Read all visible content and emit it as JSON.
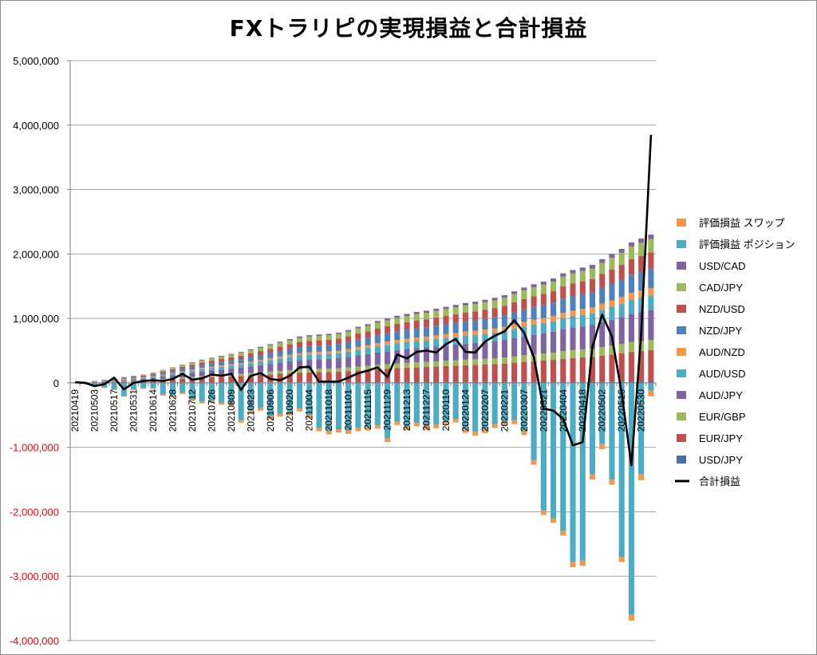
{
  "chart_data": {
    "type": "bar",
    "stacked": true,
    "title": "FXトラリピの実現損益と合計損益",
    "ylim": [
      -4000000,
      5000000
    ],
    "yticks": [
      5000000,
      4000000,
      3000000,
      2000000,
      1000000,
      0,
      -1000000,
      -2000000,
      -3000000,
      -4000000
    ],
    "ytick_labels": [
      "5,000,000",
      "4,000,000",
      "3,000,000",
      "2,000,000",
      "1,000,000",
      "0",
      "-1,000,000",
      "-2,000,000",
      "-3,000,000",
      "-4,000,000"
    ],
    "negative_tick_color": "#ff0000",
    "grid": true,
    "legend_position": "right",
    "categories": [
      "2021/04/19",
      "2021/04/26",
      "2021/05/03",
      "2021/05/10",
      "2021/05/17",
      "2021/05/24",
      "2021/05/31",
      "2021/06/07",
      "2021/06/14",
      "2021/06/21",
      "2021/06/28",
      "2021/07/05",
      "2021/07/12",
      "2021/07/19",
      "2021/07/26",
      "2021/08/02",
      "2021/08/09",
      "2021/08/16",
      "2021/08/23",
      "2021/08/30",
      "2021/09/06",
      "2021/09/13",
      "2021/09/20",
      "2021/09/27",
      "2021/10/04",
      "2021/10/11",
      "2021/10/18",
      "2021/10/25",
      "2021/11/01",
      "2021/11/08",
      "2021/11/15",
      "2021/11/22",
      "2021/11/29",
      "2021/12/06",
      "2021/12/13",
      "2021/12/20",
      "2021/12/27",
      "2022/01/03",
      "2022/01/10",
      "2022/01/17",
      "2022/01/24",
      "2022/01/31",
      "2022/02/07",
      "2022/02/14",
      "2022/02/21",
      "2022/02/28",
      "2022/03/07",
      "2022/03/14",
      "2022/03/21",
      "2022/03/28",
      "2022/04/04",
      "2022/04/11",
      "2022/04/18",
      "2022/04/25",
      "2022/05/02",
      "2022/05/09",
      "2022/05/16",
      "2022/05/23",
      "2022/05/30",
      "2022/06/06"
    ],
    "xtick_labels": [
      "20210419",
      "20210503",
      "20210517",
      "20210531",
      "20210614",
      "20210628",
      "20210712",
      "20210726",
      "20210809",
      "20210823",
      "20210906",
      "20210920",
      "20211004",
      "20211018",
      "20211101",
      "20211115",
      "20211129",
      "20211213",
      "20211227",
      "20220110",
      "20220124",
      "20220207",
      "20220221",
      "20220307",
      "20220321",
      "20220404",
      "20220418",
      "20220502",
      "20220516",
      "20220530"
    ],
    "realized_total": [
      3000,
      15000,
      30000,
      50000,
      70000,
      90000,
      110000,
      130000,
      160000,
      200000,
      240000,
      280000,
      320000,
      360000,
      390000,
      420000,
      450000,
      480000,
      520000,
      560000,
      600000,
      640000,
      680000,
      720000,
      740000,
      750000,
      760000,
      780000,
      820000,
      870000,
      910000,
      960000,
      1000000,
      1040000,
      1070000,
      1100000,
      1120000,
      1150000,
      1180000,
      1210000,
      1240000,
      1260000,
      1290000,
      1320000,
      1360000,
      1420000,
      1480000,
      1530000,
      1570000,
      1620000,
      1700000,
      1750000,
      1790000,
      1830000,
      1920000,
      2000000,
      2080000,
      2180000,
      2240000,
      2300000
    ],
    "valuation_position": [
      -5000,
      -15000,
      -60000,
      -70000,
      -100000,
      -200000,
      -100000,
      -80000,
      -80000,
      -180000,
      -200000,
      -150000,
      -260000,
      -290000,
      -280000,
      -310000,
      -320000,
      -580000,
      -430000,
      -390000,
      -520000,
      -480000,
      -460000,
      -400000,
      -500000,
      -700000,
      -750000,
      -720000,
      -740000,
      -700000,
      -690000,
      -660000,
      -860000,
      -600000,
      -680000,
      -620000,
      -670000,
      -650000,
      -600000,
      -560000,
      -720000,
      -760000,
      -720000,
      -640000,
      -600000,
      -580000,
      -750000,
      -1200000,
      -1980000,
      -2100000,
      -2300000,
      -2780000,
      -2760000,
      -1420000,
      -950000,
      -1500000,
      -2700000,
      -3600000,
      -1420000,
      -120000
    ],
    "valuation_swap": [
      -1000,
      -3000,
      -8000,
      -10000,
      -12000,
      -15000,
      -15000,
      -15000,
      -18000,
      -20000,
      -22000,
      -22000,
      -25000,
      -28000,
      -28000,
      -30000,
      -30000,
      -40000,
      -40000,
      -40000,
      -45000,
      -45000,
      -45000,
      -45000,
      -50000,
      -50000,
      -50000,
      -50000,
      -50000,
      -50000,
      -50000,
      -50000,
      -60000,
      -55000,
      -55000,
      -55000,
      -55000,
      -55000,
      -55000,
      -55000,
      -55000,
      -60000,
      -60000,
      -60000,
      -60000,
      -60000,
      -60000,
      -70000,
      -70000,
      -70000,
      -70000,
      -80000,
      -80000,
      -80000,
      -80000,
      -80000,
      -80000,
      -90000,
      -90000,
      -90000
    ],
    "total": [
      10000,
      0,
      -50000,
      -20000,
      80000,
      -100000,
      0,
      30000,
      40000,
      30000,
      60000,
      140000,
      50000,
      70000,
      130000,
      110000,
      140000,
      -110000,
      110000,
      150000,
      60000,
      40000,
      110000,
      240000,
      250000,
      20000,
      20000,
      20000,
      80000,
      150000,
      190000,
      240000,
      90000,
      440000,
      380000,
      480000,
      500000,
      470000,
      600000,
      680000,
      480000,
      470000,
      640000,
      730000,
      800000,
      970000,
      780000,
      400000,
      -400000,
      -430000,
      -560000,
      -970000,
      -920000,
      560000,
      1060000,
      720000,
      -160000,
      -1280000,
      760000,
      3850000
    ],
    "series": [
      {
        "name": "USD/JPY",
        "color": "#4a6fa5",
        "share": 0.01
      },
      {
        "name": "EUR/JPY",
        "color": "#c0504d",
        "share": 0.21
      },
      {
        "name": "EUR/GBP",
        "color": "#9bbb59",
        "share": 0.07
      },
      {
        "name": "AUD/JPY",
        "color": "#8064a2",
        "share": 0.2
      },
      {
        "name": "AUD/USD",
        "color": "#4bacc6",
        "share": 0.1
      },
      {
        "name": "AUD/NZD",
        "color": "#f79646",
        "share": 0.05
      },
      {
        "name": "NZD/JPY",
        "color": "#4f81bd",
        "share": 0.13
      },
      {
        "name": "NZD/USD",
        "color": "#c0504d",
        "share": 0.11
      },
      {
        "name": "CAD/JPY",
        "color": "#9bbb59",
        "share": 0.09
      },
      {
        "name": "USD/CAD",
        "color": "#8064a2",
        "share": 0.03
      },
      {
        "name": "評価損益 ポジション",
        "color": "#4bacc6"
      },
      {
        "name": "評価損益 スワップ",
        "color": "#f79646"
      }
    ],
    "line_series": {
      "name": "合計損益",
      "color": "#000000"
    },
    "legend": [
      {
        "label": "評価損益 スワップ",
        "color": "#f79646",
        "kind": "box"
      },
      {
        "label": "評価損益 ポジション",
        "color": "#4bacc6",
        "kind": "box"
      },
      {
        "label": "USD/CAD",
        "color": "#8064a2",
        "kind": "box"
      },
      {
        "label": "CAD/JPY",
        "color": "#9bbb59",
        "kind": "box"
      },
      {
        "label": "NZD/USD",
        "color": "#c0504d",
        "kind": "box"
      },
      {
        "label": "NZD/JPY",
        "color": "#4f81bd",
        "kind": "box"
      },
      {
        "label": "AUD/NZD",
        "color": "#f79646",
        "kind": "box"
      },
      {
        "label": "AUD/USD",
        "color": "#4bacc6",
        "kind": "box"
      },
      {
        "label": "AUD/JPY",
        "color": "#8064a2",
        "kind": "box"
      },
      {
        "label": "EUR/GBP",
        "color": "#9bbb59",
        "kind": "box"
      },
      {
        "label": "EUR/JPY",
        "color": "#c0504d",
        "kind": "box"
      },
      {
        "label": "USD/JPY",
        "color": "#4a6fa5",
        "kind": "box"
      },
      {
        "label": "合計損益",
        "color": "#000000",
        "kind": "line"
      }
    ]
  }
}
